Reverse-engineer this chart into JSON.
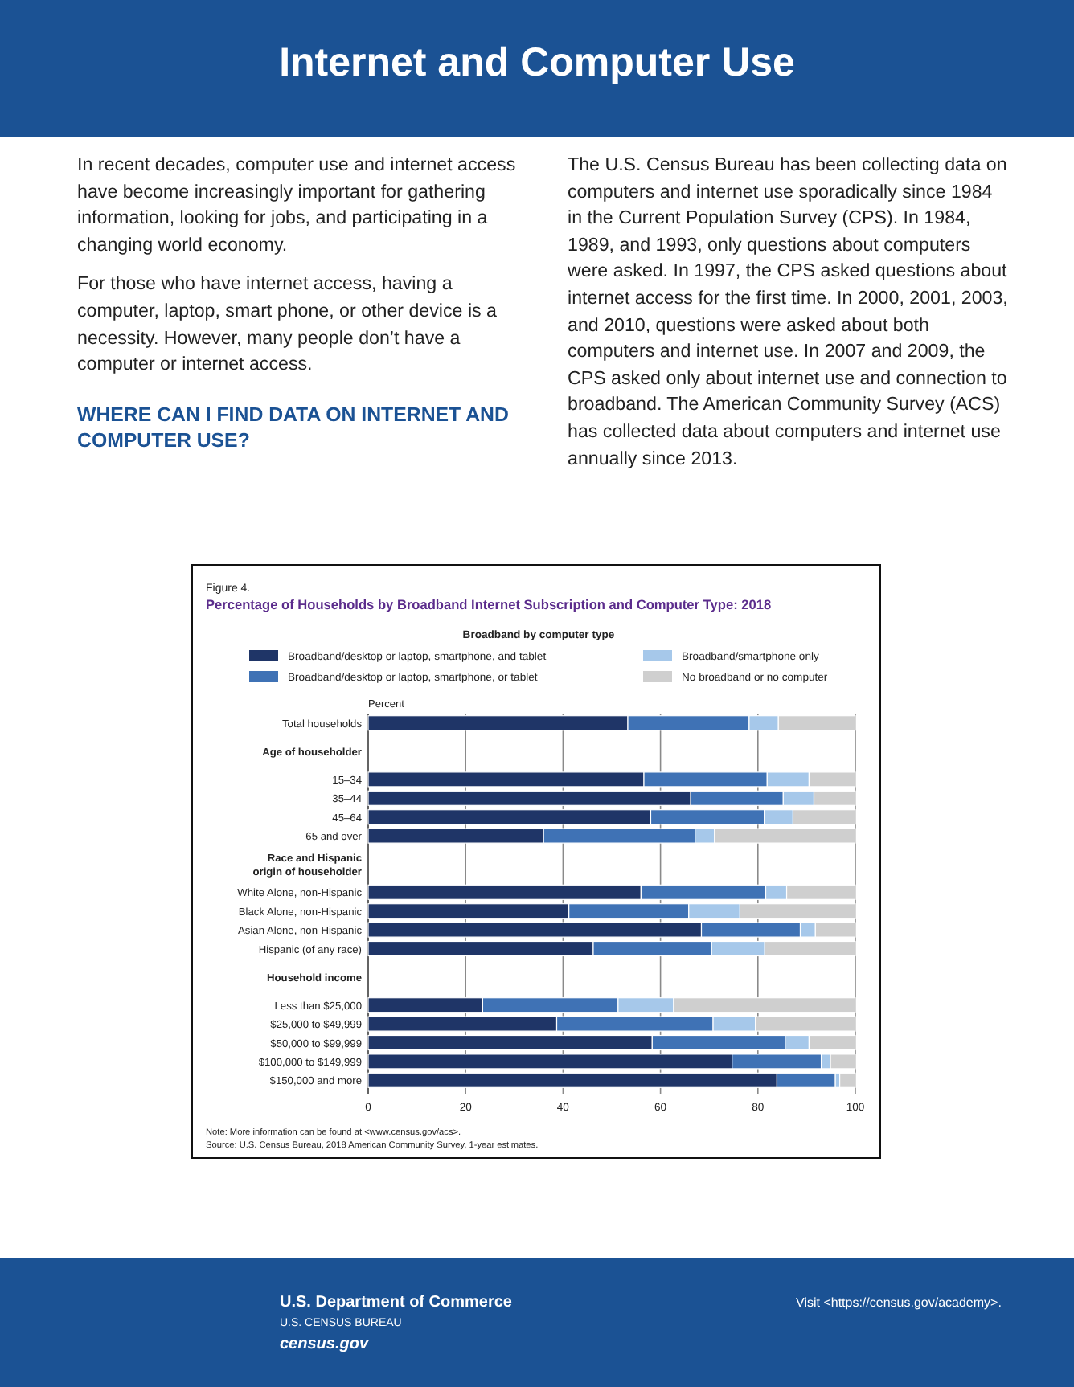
{
  "chart_data": {
    "type": "bar",
    "orientation": "horizontal",
    "stacked": true,
    "subtitle": "Figure 4.",
    "title": "Percentage of Households by Broadband Internet Subscription and Computer Type: 2018",
    "legend_title": "Broadband by computer type",
    "legend": "top",
    "xlabel": "Percent",
    "grid": "x",
    "xlim": [
      0,
      100
    ],
    "xticks": [
      0,
      20,
      40,
      60,
      80,
      100
    ],
    "categories": [
      "Total households",
      "Age of householder",
      "15–34",
      "35–44",
      "45–64",
      "65 and over",
      "Race and Hispanic origin of householder",
      "White Alone, non-Hispanic",
      "Black Alone, non-Hispanic",
      "Asian Alone, non-Hispanic",
      "Hispanic (of any race)",
      "Household income",
      "Less than $25,000",
      "$25,000 to $49,999",
      "$50,000 to $99,999",
      "$100,000 to $149,999",
      "$150,000 and more"
    ],
    "series": [
      {
        "name": "Broadband/desktop or laptop, smartphone, and tablet",
        "color": "#1f3567",
        "values": [
          53.3,
          null,
          56.6,
          66.2,
          58.0,
          36.0,
          null,
          56.0,
          41.2,
          68.4,
          46.2,
          null,
          23.5,
          38.7,
          58.3,
          74.7,
          83.9
        ]
      },
      {
        "name": "Broadband/desktop or laptop, smartphone, or tablet",
        "color": "#3f72b5",
        "values": [
          24.9,
          null,
          25.3,
          19.0,
          23.3,
          31.1,
          null,
          25.6,
          24.6,
          20.3,
          24.3,
          null,
          27.8,
          32.1,
          27.3,
          18.3,
          12.0
        ]
      },
      {
        "name": "Broadband/smartphone only",
        "color": "#a6c8ea",
        "values": [
          6.0,
          null,
          8.6,
          6.3,
          5.9,
          4.0,
          null,
          4.3,
          10.5,
          3.1,
          10.9,
          null,
          11.4,
          8.7,
          4.9,
          1.9,
          0.9
        ]
      },
      {
        "name": "No broadband or no computer",
        "color": "#cfcfcf",
        "values": [
          15.8,
          null,
          9.5,
          8.5,
          12.8,
          28.9,
          null,
          14.1,
          23.7,
          8.2,
          18.6,
          null,
          37.3,
          20.5,
          9.5,
          5.1,
          3.2
        ]
      }
    ],
    "annotations": [
      "Internet and Computer Use",
      "In recent decades, computer use and internet access have become increasingly important for gathering information, looking for jobs, and participating in a changing world economy.",
      "For those who have internet access, having a computer, laptop, smart phone, or other device is a necessity. However, many people don’t have a computer or internet access.",
      "WHERE CAN I FIND DATA ON INTERNET AND COMPUTER USE?",
      "The U.S. Census Bureau has been collecting data on computers and internet use sporadically since 1984 in the Current Population Survey (CPS). In 1984, 1989, and 1993, only questions about computers were asked. In 1997, the CPS asked questions about internet access for the first time. In 2000, 2001, 2003, and 2010, questions were asked about both computers and internet use. In 2007 and 2009, the CPS asked only about internet use and connection to broadband. The American Community Survey (ACS) has collected data about computers and internet use annually since 2013.",
      "Note: More information can be found at <www.census.gov/acs>.",
      "Source: U.S. Census Bureau, 2018 American Community Survey, 1-year estimates.",
      "U.S. Department of Commerce",
      "U.S. CENSUS BUREAU",
      "census.gov",
      "Visit <https://census.gov/academy>."
    ]
  }
}
